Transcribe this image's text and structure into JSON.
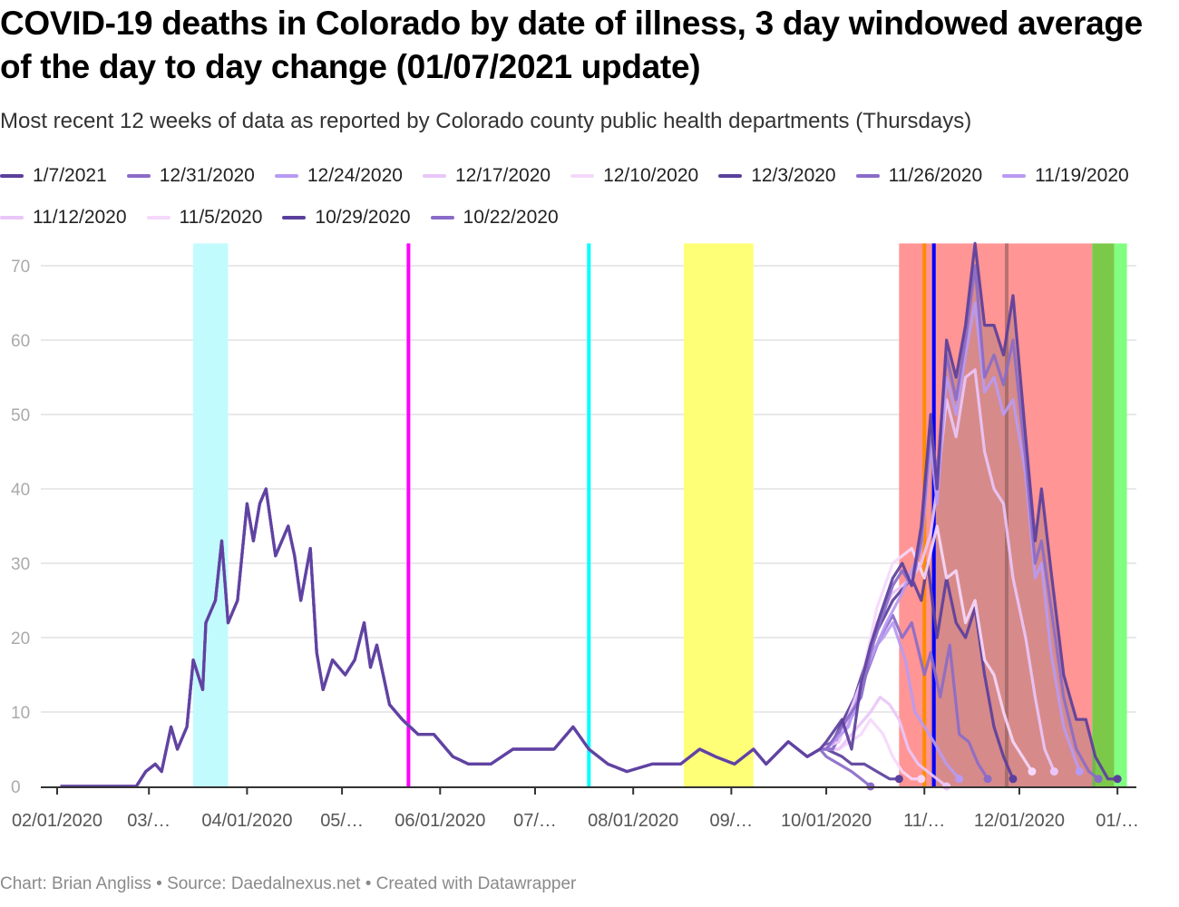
{
  "header": {
    "title": "COVID-19 deaths in Colorado by date of illness, 3 day windowed average of the day to day change (01/07/2021 update)",
    "subtitle": "Most recent 12 weeks of data as reported by Colorado county public health departments (Thursdays)"
  },
  "footer": {
    "text": "Chart: Brian Angliss • Source: Daedalnexus.net • Created with Datawrapper"
  },
  "chart_data": {
    "type": "line",
    "title": "COVID-19 deaths in Colorado by date of illness, 3 day windowed average of the day to day change (01/07/2021 update)",
    "xlabel": "",
    "ylabel": "",
    "xlim": [
      "2020-01-24",
      "2021-01-07"
    ],
    "ylim": [
      0,
      73
    ],
    "yticks": [
      0,
      10,
      20,
      30,
      40,
      50,
      60,
      70
    ],
    "xticks": [
      {
        "date": "2020-02-01",
        "label": "02/01/2020"
      },
      {
        "date": "2020-03-01",
        "label": "03/…"
      },
      {
        "date": "2020-04-01",
        "label": "04/01/2020"
      },
      {
        "date": "2020-05-01",
        "label": "05/…"
      },
      {
        "date": "2020-06-01",
        "label": "06/01/2020"
      },
      {
        "date": "2020-07-01",
        "label": "07/…"
      },
      {
        "date": "2020-08-01",
        "label": "08/01/2020"
      },
      {
        "date": "2020-09-01",
        "label": "09/…"
      },
      {
        "date": "2020-10-01",
        "label": "10/01/2020"
      },
      {
        "date": "2020-11-01",
        "label": "11/…"
      },
      {
        "date": "2020-12-01",
        "label": "12/01/2020"
      },
      {
        "date": "2021-01-01",
        "label": "01/…"
      }
    ],
    "grid": true,
    "legend_position": "top",
    "annotations": [
      {
        "kind": "band",
        "from": "2020-03-15",
        "to": "2020-03-26",
        "color": "#c2fbfd"
      },
      {
        "kind": "line",
        "at": "2020-05-22",
        "color": "#ff00ff"
      },
      {
        "kind": "line",
        "at": "2020-07-18",
        "color": "#00ffff"
      },
      {
        "kind": "band",
        "from": "2020-08-17",
        "to": "2020-09-08",
        "color": "#ffff77"
      },
      {
        "kind": "band",
        "from": "2020-10-24",
        "to": "2020-12-24",
        "color": "#ff9595"
      },
      {
        "kind": "band",
        "from": "2020-12-24",
        "to": "2020-12-31",
        "color": "#7cc94a"
      },
      {
        "kind": "band",
        "from": "2020-12-31",
        "to": "2021-01-04",
        "color": "#80ff80"
      },
      {
        "kind": "line",
        "at": "2020-11-01",
        "color": "#ff8c00"
      },
      {
        "kind": "line",
        "at": "2020-11-04",
        "color": "#0000ff"
      },
      {
        "kind": "line",
        "at": "2020-11-27",
        "color": "#8b5a5a"
      }
    ],
    "shaded_area": {
      "series": "1/7/2021",
      "from": "2020-11-01",
      "to": "2020-12-25",
      "color": "rgba(110,110,110,0.28)"
    },
    "shared_history": [
      [
        "2020-02-02",
        0
      ],
      [
        "2020-02-15",
        0
      ],
      [
        "2020-02-26",
        0
      ],
      [
        "2020-02-29",
        2
      ],
      [
        "2020-03-03",
        3
      ],
      [
        "2020-03-05",
        2
      ],
      [
        "2020-03-08",
        8
      ],
      [
        "2020-03-10",
        5
      ],
      [
        "2020-03-13",
        8
      ],
      [
        "2020-03-15",
        17
      ],
      [
        "2020-03-18",
        13
      ],
      [
        "2020-03-19",
        22
      ],
      [
        "2020-03-22",
        25
      ],
      [
        "2020-03-24",
        33
      ],
      [
        "2020-03-26",
        22
      ],
      [
        "2020-03-29",
        25
      ],
      [
        "2020-04-01",
        38
      ],
      [
        "2020-04-03",
        33
      ],
      [
        "2020-04-05",
        38
      ],
      [
        "2020-04-07",
        40
      ],
      [
        "2020-04-10",
        31
      ],
      [
        "2020-04-14",
        35
      ],
      [
        "2020-04-16",
        31
      ],
      [
        "2020-04-18",
        25
      ],
      [
        "2020-04-21",
        32
      ],
      [
        "2020-04-23",
        18
      ],
      [
        "2020-04-25",
        13
      ],
      [
        "2020-04-28",
        17
      ],
      [
        "2020-05-02",
        15
      ],
      [
        "2020-05-05",
        17
      ],
      [
        "2020-05-08",
        22
      ],
      [
        "2020-05-10",
        16
      ],
      [
        "2020-05-12",
        19
      ],
      [
        "2020-05-16",
        11
      ],
      [
        "2020-05-20",
        9
      ],
      [
        "2020-05-25",
        7
      ],
      [
        "2020-05-30",
        7
      ],
      [
        "2020-06-05",
        4
      ],
      [
        "2020-06-10",
        3
      ],
      [
        "2020-06-17",
        3
      ],
      [
        "2020-06-24",
        5
      ],
      [
        "2020-07-01",
        5
      ],
      [
        "2020-07-07",
        5
      ],
      [
        "2020-07-13",
        8
      ],
      [
        "2020-07-18",
        5
      ],
      [
        "2020-07-24",
        3
      ],
      [
        "2020-07-30",
        2
      ],
      [
        "2020-08-07",
        3
      ],
      [
        "2020-08-16",
        3
      ],
      [
        "2020-08-22",
        5
      ],
      [
        "2020-08-27",
        4
      ],
      [
        "2020-09-02",
        3
      ],
      [
        "2020-09-08",
        5
      ],
      [
        "2020-09-12",
        3
      ],
      [
        "2020-09-19",
        6
      ],
      [
        "2020-09-25",
        4
      ],
      [
        "2020-09-29",
        5
      ]
    ],
    "series": [
      {
        "name": "1/7/2021",
        "color": "#5b3f9c",
        "recent": [
          [
            "2020-10-01",
            6
          ],
          [
            "2020-10-06",
            9
          ],
          [
            "2020-10-09",
            5
          ],
          [
            "2020-10-12",
            14
          ],
          [
            "2020-10-15",
            19
          ],
          [
            "2020-10-18",
            23
          ],
          [
            "2020-10-22",
            28
          ],
          [
            "2020-10-25",
            30
          ],
          [
            "2020-10-28",
            27
          ],
          [
            "2020-10-31",
            35
          ],
          [
            "2020-11-03",
            50
          ],
          [
            "2020-11-05",
            40
          ],
          [
            "2020-11-08",
            60
          ],
          [
            "2020-11-11",
            55
          ],
          [
            "2020-11-14",
            62
          ],
          [
            "2020-11-17",
            73
          ],
          [
            "2020-11-20",
            62
          ],
          [
            "2020-11-23",
            62
          ],
          [
            "2020-11-26",
            58
          ],
          [
            "2020-11-29",
            66
          ],
          [
            "2020-12-03",
            47
          ],
          [
            "2020-12-06",
            33
          ],
          [
            "2020-12-08",
            40
          ],
          [
            "2020-12-11",
            29
          ],
          [
            "2020-12-15",
            15
          ],
          [
            "2020-12-19",
            9
          ],
          [
            "2020-12-22",
            9
          ],
          [
            "2020-12-25",
            4
          ],
          [
            "2020-12-29",
            1
          ],
          [
            "2021-01-01",
            1
          ]
        ]
      },
      {
        "name": "12/31/2020",
        "color": "#8a6bc8",
        "recent": [
          [
            "2020-10-01",
            5
          ],
          [
            "2020-10-06",
            8
          ],
          [
            "2020-10-12",
            12
          ],
          [
            "2020-10-15",
            18
          ],
          [
            "2020-10-18",
            22
          ],
          [
            "2020-10-22",
            27
          ],
          [
            "2020-10-25",
            29
          ],
          [
            "2020-10-28",
            27
          ],
          [
            "2020-10-31",
            33
          ],
          [
            "2020-11-03",
            48
          ],
          [
            "2020-11-05",
            42
          ],
          [
            "2020-11-08",
            58
          ],
          [
            "2020-11-11",
            52
          ],
          [
            "2020-11-14",
            60
          ],
          [
            "2020-11-17",
            70
          ],
          [
            "2020-11-20",
            55
          ],
          [
            "2020-11-23",
            58
          ],
          [
            "2020-11-26",
            54
          ],
          [
            "2020-11-29",
            60
          ],
          [
            "2020-12-03",
            44
          ],
          [
            "2020-12-06",
            30
          ],
          [
            "2020-12-08",
            33
          ],
          [
            "2020-12-11",
            24
          ],
          [
            "2020-12-15",
            12
          ],
          [
            "2020-12-19",
            5
          ],
          [
            "2020-12-23",
            2
          ],
          [
            "2020-12-26",
            1
          ]
        ]
      },
      {
        "name": "12/24/2020",
        "color": "#b89af2",
        "recent": [
          [
            "2020-10-01",
            5
          ],
          [
            "2020-10-08",
            8
          ],
          [
            "2020-10-14",
            16
          ],
          [
            "2020-10-20",
            22
          ],
          [
            "2020-10-25",
            26
          ],
          [
            "2020-10-31",
            32
          ],
          [
            "2020-11-03",
            46
          ],
          [
            "2020-11-05",
            38
          ],
          [
            "2020-11-08",
            55
          ],
          [
            "2020-11-11",
            50
          ],
          [
            "2020-11-14",
            58
          ],
          [
            "2020-11-17",
            65
          ],
          [
            "2020-11-20",
            53
          ],
          [
            "2020-11-23",
            55
          ],
          [
            "2020-11-26",
            50
          ],
          [
            "2020-11-29",
            52
          ],
          [
            "2020-12-03",
            42
          ],
          [
            "2020-12-06",
            28
          ],
          [
            "2020-12-08",
            30
          ],
          [
            "2020-12-11",
            18
          ],
          [
            "2020-12-15",
            8
          ],
          [
            "2020-12-20",
            2
          ]
        ]
      },
      {
        "name": "12/17/2020",
        "color": "#e9c6f8",
        "recent": [
          [
            "2020-10-05",
            6
          ],
          [
            "2020-10-12",
            14
          ],
          [
            "2020-10-17",
            22
          ],
          [
            "2020-10-22",
            26
          ],
          [
            "2020-10-28",
            28
          ],
          [
            "2020-10-31",
            30
          ],
          [
            "2020-11-03",
            34
          ],
          [
            "2020-11-05",
            40
          ],
          [
            "2020-11-08",
            52
          ],
          [
            "2020-11-11",
            47
          ],
          [
            "2020-11-14",
            55
          ],
          [
            "2020-11-17",
            56
          ],
          [
            "2020-11-20",
            45
          ],
          [
            "2020-11-23",
            40
          ],
          [
            "2020-11-26",
            38
          ],
          [
            "2020-11-29",
            28
          ],
          [
            "2020-12-03",
            20
          ],
          [
            "2020-12-06",
            12
          ],
          [
            "2020-12-09",
            5
          ],
          [
            "2020-12-12",
            2
          ]
        ]
      },
      {
        "name": "12/10/2020",
        "color": "#f5d8fb",
        "recent": [
          [
            "2020-10-05",
            6
          ],
          [
            "2020-10-12",
            14
          ],
          [
            "2020-10-17",
            24
          ],
          [
            "2020-10-22",
            30
          ],
          [
            "2020-10-28",
            32
          ],
          [
            "2020-11-01",
            28
          ],
          [
            "2020-11-05",
            35
          ],
          [
            "2020-11-08",
            28
          ],
          [
            "2020-11-11",
            29
          ],
          [
            "2020-11-14",
            22
          ],
          [
            "2020-11-17",
            25
          ],
          [
            "2020-11-20",
            17
          ],
          [
            "2020-11-23",
            15
          ],
          [
            "2020-11-26",
            10
          ],
          [
            "2020-11-29",
            6
          ],
          [
            "2020-12-02",
            4
          ],
          [
            "2020-12-05",
            2
          ]
        ]
      },
      {
        "name": "12/3/2020",
        "color": "#5b3f9c",
        "recent": [
          [
            "2020-10-03",
            6
          ],
          [
            "2020-10-10",
            12
          ],
          [
            "2020-10-16",
            20
          ],
          [
            "2020-10-22",
            25
          ],
          [
            "2020-10-28",
            28
          ],
          [
            "2020-10-31",
            25
          ],
          [
            "2020-11-02",
            30
          ],
          [
            "2020-11-05",
            20
          ],
          [
            "2020-11-08",
            28
          ],
          [
            "2020-11-11",
            22
          ],
          [
            "2020-11-14",
            20
          ],
          [
            "2020-11-17",
            24
          ],
          [
            "2020-11-20",
            15
          ],
          [
            "2020-11-23",
            8
          ],
          [
            "2020-11-26",
            4
          ],
          [
            "2020-11-29",
            1
          ]
        ]
      },
      {
        "name": "11/26/2020",
        "color": "#8a6bc8",
        "recent": [
          [
            "2020-10-03",
            5
          ],
          [
            "2020-10-10",
            11
          ],
          [
            "2020-10-18",
            20
          ],
          [
            "2020-10-22",
            23
          ],
          [
            "2020-10-25",
            20
          ],
          [
            "2020-10-28",
            22
          ],
          [
            "2020-11-01",
            15
          ],
          [
            "2020-11-03",
            18
          ],
          [
            "2020-11-06",
            12
          ],
          [
            "2020-11-09",
            19
          ],
          [
            "2020-11-12",
            7
          ],
          [
            "2020-11-15",
            6
          ],
          [
            "2020-11-18",
            3
          ],
          [
            "2020-11-21",
            1
          ]
        ]
      },
      {
        "name": "11/19/2020",
        "color": "#b89af2",
        "recent": [
          [
            "2020-10-03",
            5
          ],
          [
            "2020-10-10",
            10
          ],
          [
            "2020-10-15",
            18
          ],
          [
            "2020-10-19",
            20
          ],
          [
            "2020-10-22",
            22
          ],
          [
            "2020-10-26",
            17
          ],
          [
            "2020-10-29",
            10
          ],
          [
            "2020-11-01",
            8
          ],
          [
            "2020-11-04",
            6
          ],
          [
            "2020-11-08",
            3
          ],
          [
            "2020-11-12",
            1
          ]
        ]
      },
      {
        "name": "11/12/2020",
        "color": "#e9c6f8",
        "recent": [
          [
            "2020-10-05",
            5
          ],
          [
            "2020-10-15",
            10
          ],
          [
            "2020-10-18",
            12
          ],
          [
            "2020-10-21",
            11
          ],
          [
            "2020-10-24",
            9
          ],
          [
            "2020-10-27",
            5
          ],
          [
            "2020-10-30",
            3
          ],
          [
            "2020-11-02",
            2
          ],
          [
            "2020-11-05",
            1
          ],
          [
            "2020-11-08",
            0
          ]
        ]
      },
      {
        "name": "11/5/2020",
        "color": "#f5d8fb",
        "recent": [
          [
            "2020-10-05",
            5
          ],
          [
            "2020-10-12",
            7
          ],
          [
            "2020-10-15",
            9
          ],
          [
            "2020-10-19",
            7
          ],
          [
            "2020-10-22",
            4
          ],
          [
            "2020-10-25",
            2
          ],
          [
            "2020-10-28",
            1
          ],
          [
            "2020-10-31",
            1
          ]
        ]
      },
      {
        "name": "10/29/2020",
        "color": "#5b3f9c",
        "recent": [
          [
            "2020-10-01",
            5
          ],
          [
            "2020-10-06",
            4
          ],
          [
            "2020-10-09",
            3
          ],
          [
            "2020-10-13",
            3
          ],
          [
            "2020-10-17",
            2
          ],
          [
            "2020-10-21",
            1
          ],
          [
            "2020-10-24",
            1
          ]
        ]
      },
      {
        "name": "10/22/2020",
        "color": "#8a6bc8",
        "recent": [
          [
            "2020-10-01",
            4
          ],
          [
            "2020-10-05",
            3
          ],
          [
            "2020-10-09",
            2
          ],
          [
            "2020-10-12",
            1
          ],
          [
            "2020-10-15",
            0
          ]
        ]
      }
    ]
  }
}
